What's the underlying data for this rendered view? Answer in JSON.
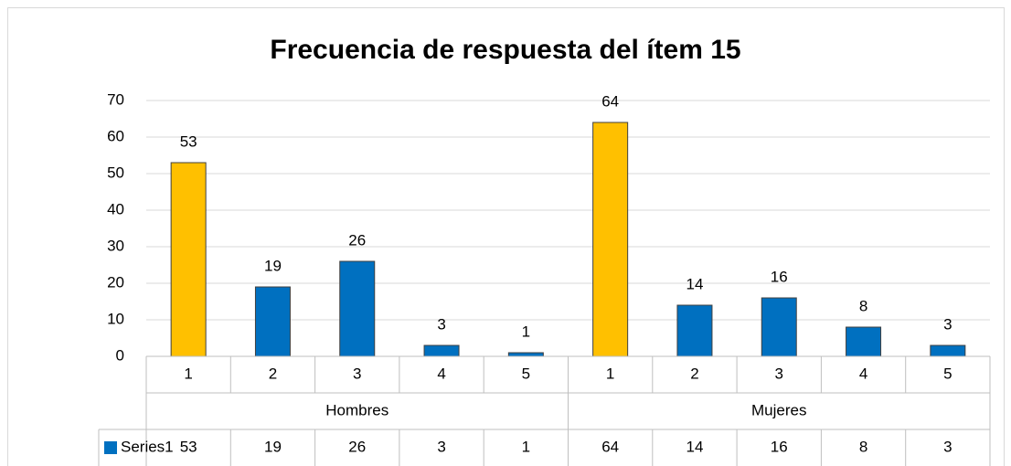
{
  "chart_data": {
    "type": "bar",
    "title": "Frecuencia de respuesta del ítem 15",
    "categories": [
      "1",
      "2",
      "3",
      "4",
      "5",
      "1",
      "2",
      "3",
      "4",
      "5"
    ],
    "groups": [
      {
        "label": "Hombres",
        "size": 5
      },
      {
        "label": "Mujeres",
        "size": 5
      }
    ],
    "series": [
      {
        "name": "Series1",
        "color": "#0070c0",
        "values": [
          53,
          19,
          26,
          3,
          1,
          64,
          14,
          16,
          8,
          3
        ]
      }
    ],
    "point_colors": [
      "#ffc000",
      "#0070c0",
      "#0070c0",
      "#0070c0",
      "#0070c0",
      "#ffc000",
      "#0070c0",
      "#0070c0",
      "#0070c0",
      "#0070c0"
    ],
    "ylim": [
      0,
      70
    ],
    "yticks": [
      0,
      10,
      20,
      30,
      40,
      50,
      60,
      70
    ],
    "grid": true,
    "data_labels": true,
    "data_table": true
  }
}
